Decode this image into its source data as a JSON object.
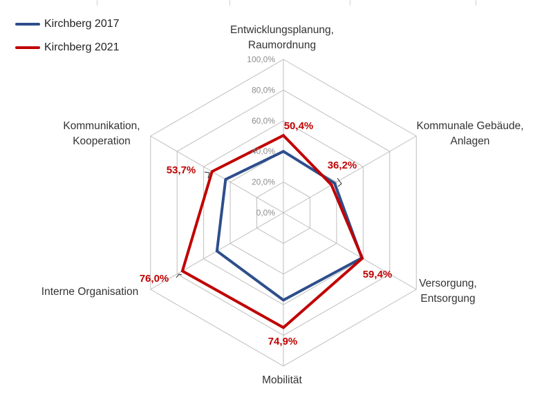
{
  "chart_data": {
    "type": "radar",
    "categories": [
      [
        "Entwicklungsplanung,",
        "Raumordnung"
      ],
      [
        "Kommunale Gebäude,",
        "Anlagen"
      ],
      [
        "Versorgung,",
        "Entsorgung"
      ],
      [
        "Mobilität"
      ],
      [
        "Interne Organisation"
      ],
      [
        "Kommunikation,",
        "Kooperation"
      ]
    ],
    "rlim": [
      0,
      100
    ],
    "ticks": [
      "0,0%",
      "20,0%",
      "40,0%",
      "60,0%",
      "80,0%",
      "100,0%"
    ],
    "series": [
      {
        "name": "Kirchberg 2017",
        "color": "#2e4e8c",
        "values": [
          40.0,
          38.5,
          59.0,
          57.0,
          50.0,
          43.5
        ]
      },
      {
        "name": "Kirchberg 2021",
        "color": "#c00000",
        "values": [
          50.4,
          36.2,
          59.4,
          74.9,
          76.0,
          53.7
        ]
      }
    ],
    "data_labels": [
      "50,4%",
      "36,2%",
      "59,4%",
      "74,9%",
      "76,0%",
      "53,7%"
    ],
    "legend_position": "top-left",
    "grid": true
  }
}
